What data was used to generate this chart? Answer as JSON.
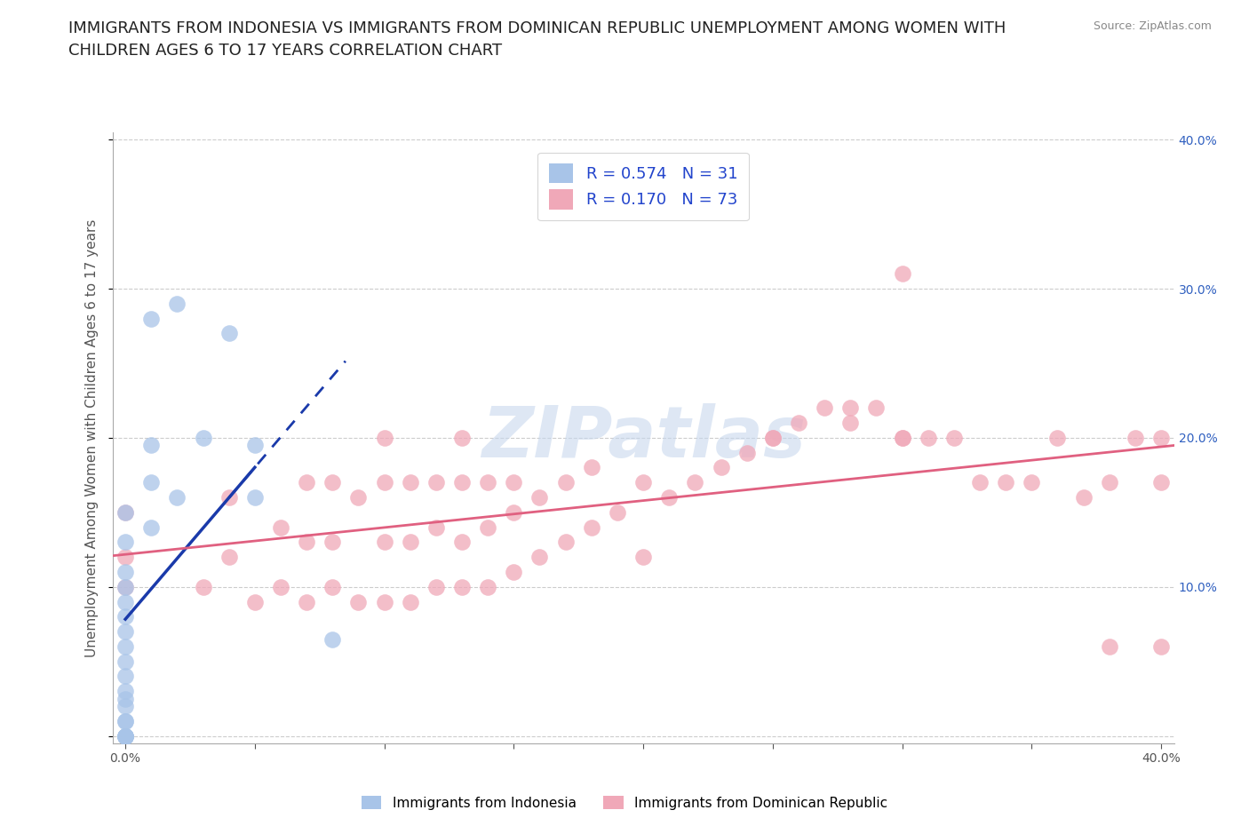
{
  "title": "IMMIGRANTS FROM INDONESIA VS IMMIGRANTS FROM DOMINICAN REPUBLIC UNEMPLOYMENT AMONG WOMEN WITH\nCHILDREN AGES 6 TO 17 YEARS CORRELATION CHART",
  "source_text": "Source: ZipAtlas.com",
  "ylabel": "Unemployment Among Women with Children Ages 6 to 17 years",
  "legend_labels": [
    "Immigrants from Indonesia",
    "Immigrants from Dominican Republic"
  ],
  "r_indonesia": 0.574,
  "n_indonesia": 31,
  "r_dominican": 0.17,
  "n_dominican": 73,
  "color_indonesia": "#a8c4e8",
  "color_dominican": "#f0a8b8",
  "line_color_indonesia": "#1a3aaa",
  "line_color_dominican": "#e06080",
  "indonesia_x": [
    0.0,
    0.0,
    0.0,
    0.0,
    0.0,
    0.0,
    0.0,
    0.0,
    0.0,
    0.0,
    0.0,
    0.0,
    0.0,
    0.0,
    0.0,
    0.0,
    0.0,
    0.0,
    0.0,
    0.0,
    0.01,
    0.01,
    0.01,
    0.01,
    0.02,
    0.02,
    0.03,
    0.04,
    0.05,
    0.05,
    0.08
  ],
  "indonesia_y": [
    0.0,
    0.0,
    0.0,
    0.0,
    0.0,
    0.01,
    0.01,
    0.02,
    0.025,
    0.03,
    0.04,
    0.05,
    0.06,
    0.07,
    0.08,
    0.09,
    0.1,
    0.11,
    0.13,
    0.15,
    0.14,
    0.17,
    0.195,
    0.28,
    0.16,
    0.29,
    0.2,
    0.27,
    0.16,
    0.195,
    0.065
  ],
  "dominican_x": [
    0.0,
    0.0,
    0.0,
    0.03,
    0.04,
    0.04,
    0.05,
    0.06,
    0.06,
    0.07,
    0.07,
    0.07,
    0.08,
    0.08,
    0.08,
    0.09,
    0.09,
    0.1,
    0.1,
    0.1,
    0.1,
    0.11,
    0.11,
    0.11,
    0.12,
    0.12,
    0.12,
    0.13,
    0.13,
    0.13,
    0.13,
    0.14,
    0.14,
    0.14,
    0.15,
    0.15,
    0.15,
    0.16,
    0.16,
    0.17,
    0.17,
    0.18,
    0.18,
    0.19,
    0.2,
    0.2,
    0.21,
    0.22,
    0.23,
    0.24,
    0.25,
    0.25,
    0.26,
    0.27,
    0.28,
    0.28,
    0.29,
    0.3,
    0.3,
    0.3,
    0.31,
    0.32,
    0.33,
    0.34,
    0.35,
    0.36,
    0.37,
    0.38,
    0.38,
    0.39,
    0.4,
    0.4,
    0.4
  ],
  "dominican_y": [
    0.1,
    0.12,
    0.15,
    0.1,
    0.12,
    0.16,
    0.09,
    0.1,
    0.14,
    0.09,
    0.13,
    0.17,
    0.1,
    0.13,
    0.17,
    0.09,
    0.16,
    0.09,
    0.13,
    0.17,
    0.2,
    0.09,
    0.13,
    0.17,
    0.1,
    0.14,
    0.17,
    0.1,
    0.13,
    0.17,
    0.2,
    0.1,
    0.14,
    0.17,
    0.11,
    0.15,
    0.17,
    0.12,
    0.16,
    0.13,
    0.17,
    0.14,
    0.18,
    0.15,
    0.12,
    0.17,
    0.16,
    0.17,
    0.18,
    0.19,
    0.2,
    0.2,
    0.21,
    0.22,
    0.21,
    0.22,
    0.22,
    0.2,
    0.2,
    0.31,
    0.2,
    0.2,
    0.17,
    0.17,
    0.17,
    0.2,
    0.16,
    0.17,
    0.06,
    0.2,
    0.17,
    0.2,
    0.06
  ],
  "xmin": 0.0,
  "xmax": 0.4,
  "ymin": 0.0,
  "ymax": 0.4,
  "yticks": [
    0.0,
    0.1,
    0.2,
    0.3,
    0.4
  ],
  "ytick_labels_right": [
    "",
    "10.0%",
    "20.0%",
    "30.0%",
    "40.0%"
  ],
  "xtick_positions": [
    0.0,
    0.05,
    0.1,
    0.15,
    0.2,
    0.25,
    0.3,
    0.35,
    0.4
  ],
  "grid_color": "#cccccc",
  "background_color": "#ffffff",
  "title_fontsize": 13,
  "axis_label_fontsize": 11,
  "tick_fontsize": 10,
  "right_tick_color": "#3060c0",
  "watermark_color": "#c8d8ee",
  "watermark_text": "ZIPatlas"
}
